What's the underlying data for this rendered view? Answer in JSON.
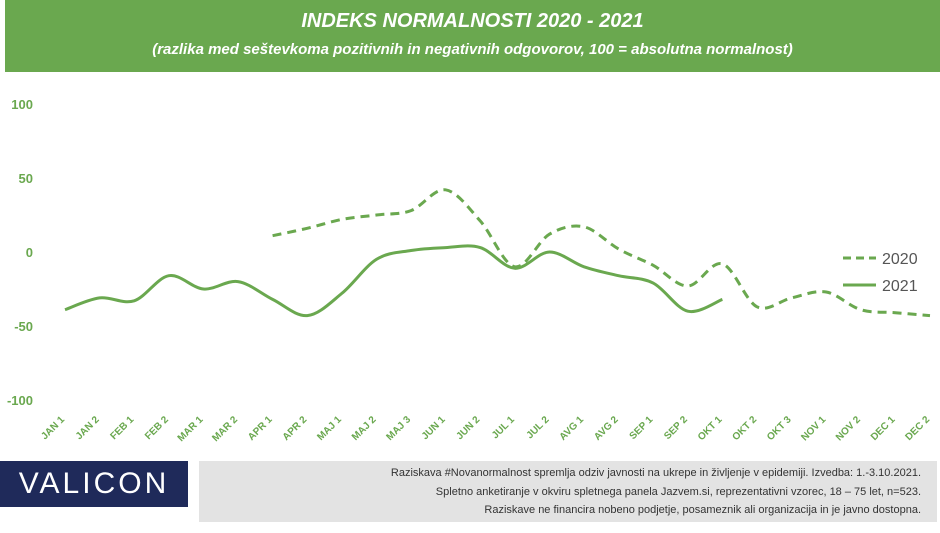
{
  "header": {
    "title": "INDEKS NORMALNOSTI 2020 - 2021",
    "subtitle": "(razlika med seštevkoma pozitivnih in negativnih odgovorov, 100 = absolutna normalnost)"
  },
  "colors": {
    "banner": "#6aa84f",
    "line": "#6aa84f",
    "logo_bg": "#1f2a5a",
    "note_bg": "#e3e3e3"
  },
  "chart_data": {
    "type": "line",
    "categories": [
      "JAN 1",
      "JAN 2",
      "FEB 1",
      "FEB 2",
      "MAR 1",
      "MAR 2",
      "APR 1",
      "APR 2",
      "MAJ 1",
      "MAJ 2",
      "MAJ 3",
      "JUN 1",
      "JUN 2",
      "JUL 1",
      "JUL 2",
      "AVG 1",
      "AVG 2",
      "SEP 1",
      "SEP 2",
      "OKT 1",
      "OKT 2",
      "OKT 3",
      "NOV 1",
      "NOV 2",
      "DEC 1",
      "DEC 2"
    ],
    "yticks": [
      "100",
      "50",
      "0",
      "-50",
      "-100"
    ],
    "ylim": [
      -100,
      100
    ],
    "series": [
      {
        "name": "2020",
        "style": "dashed",
        "values": [
          null,
          null,
          null,
          null,
          null,
          null,
          11,
          16,
          22,
          25,
          28,
          42,
          21,
          -10,
          12,
          17,
          2,
          -9,
          -23,
          -8,
          -37,
          -31,
          -27,
          -39,
          -41,
          -43
        ]
      },
      {
        "name": "2021",
        "style": "solid",
        "values": [
          -39,
          -31,
          -33,
          -16,
          -25,
          -20,
          -32,
          -43,
          -28,
          -5,
          1,
          3,
          3,
          -11,
          0,
          -10,
          -16,
          -21,
          -40,
          -32,
          null,
          null,
          null,
          null,
          null,
          null
        ]
      }
    ]
  },
  "brand": {
    "logo_text": "VALICON"
  },
  "footer": {
    "line1": "Raziskava #Novanormalnost spremlja odziv javnosti na ukrepe in življenje v epidemiji. Izvedba: 1.-3.10.2021.",
    "line2": "Spletno anketiranje v okviru spletnega panela Jazvem.si, reprezentativni vzorec, 18 – 75 let, n=523.",
    "line3": "Raziskave ne financira nobeno podjetje, posameznik ali organizacija in je javno dostopna."
  }
}
